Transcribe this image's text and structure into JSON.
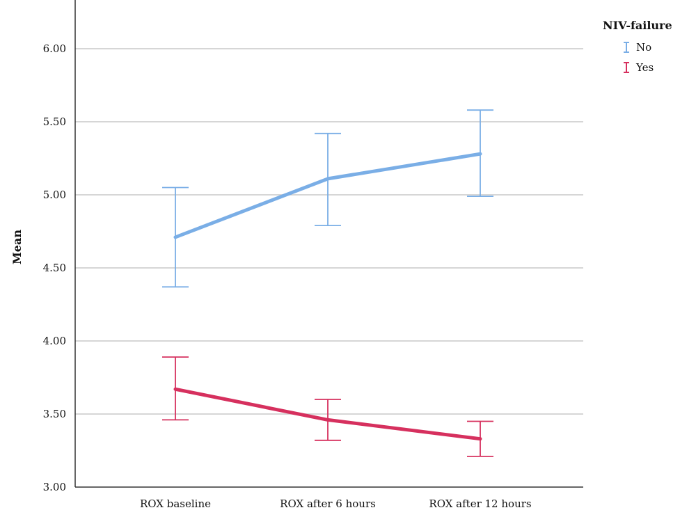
{
  "chart_data": {
    "type": "line",
    "title": "",
    "xlabel": "",
    "ylabel": "Mean",
    "ylim": [
      3.0,
      6.25
    ],
    "yticks": [
      3.0,
      3.5,
      4.0,
      4.5,
      5.0,
      5.5,
      6.0
    ],
    "ytick_labels": [
      "3.00",
      "3.50",
      "4.00",
      "4.50",
      "5.00",
      "5.50",
      "6.00"
    ],
    "categories": [
      "ROX baseline",
      "ROX after 6 hours",
      "ROX after 12 hours"
    ],
    "grid": "horizontal",
    "legend": {
      "title": "NIV-failure",
      "placement": "top-right"
    },
    "series": [
      {
        "name": "No",
        "color": "#7aaee6",
        "values": [
          4.71,
          5.11,
          5.28
        ],
        "error_low": [
          4.37,
          4.79,
          4.99
        ],
        "error_high": [
          5.05,
          5.42,
          5.58
        ]
      },
      {
        "name": "Yes",
        "color": "#d6305e",
        "values": [
          3.67,
          3.46,
          3.33
        ],
        "error_low": [
          3.46,
          3.32,
          3.21
        ],
        "error_high": [
          3.89,
          3.6,
          3.45
        ]
      }
    ]
  }
}
